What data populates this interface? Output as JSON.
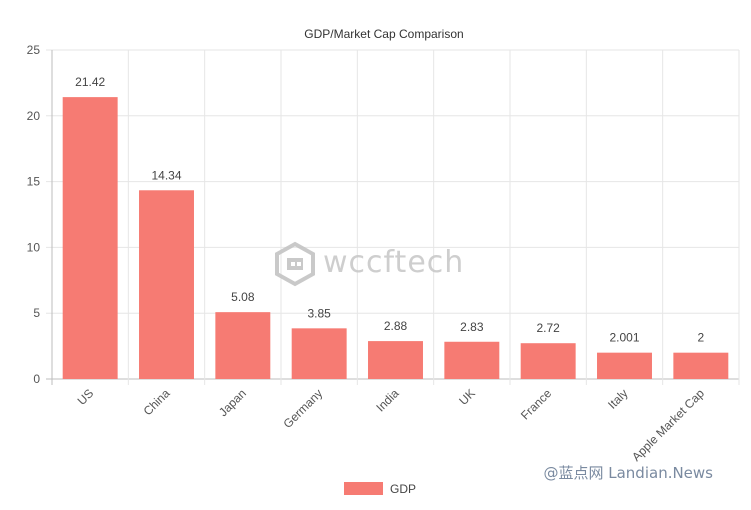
{
  "chart_data": {
    "type": "bar",
    "title": "GDP/Market Cap Comparison",
    "categories": [
      "US",
      "China",
      "Japan",
      "Germany",
      "India",
      "UK",
      "France",
      "Italy",
      "Apple Market Cap"
    ],
    "series": [
      {
        "name": "GDP",
        "values": [
          21.42,
          14.34,
          5.08,
          3.85,
          2.88,
          2.83,
          2.72,
          2.001,
          2
        ],
        "color": "#f67b73"
      }
    ],
    "data_labels": [
      "21.42",
      "14.34",
      "5.08",
      "3.85",
      "2.88",
      "2.83",
      "2.72",
      "2.001",
      "2"
    ],
    "ylim": [
      0,
      25
    ],
    "yticks": [
      0,
      5,
      10,
      15,
      20,
      25
    ],
    "grid": true,
    "legend_position": "bottom"
  },
  "watermarks": {
    "logo": "wccftech",
    "logo_icon": "wccftech-logo-icon",
    "site": "@蓝点网 Landian.News"
  },
  "colors": {
    "bar": "#f67b73",
    "grid": "#e6e6e6",
    "axis": "#bdbdbd"
  }
}
